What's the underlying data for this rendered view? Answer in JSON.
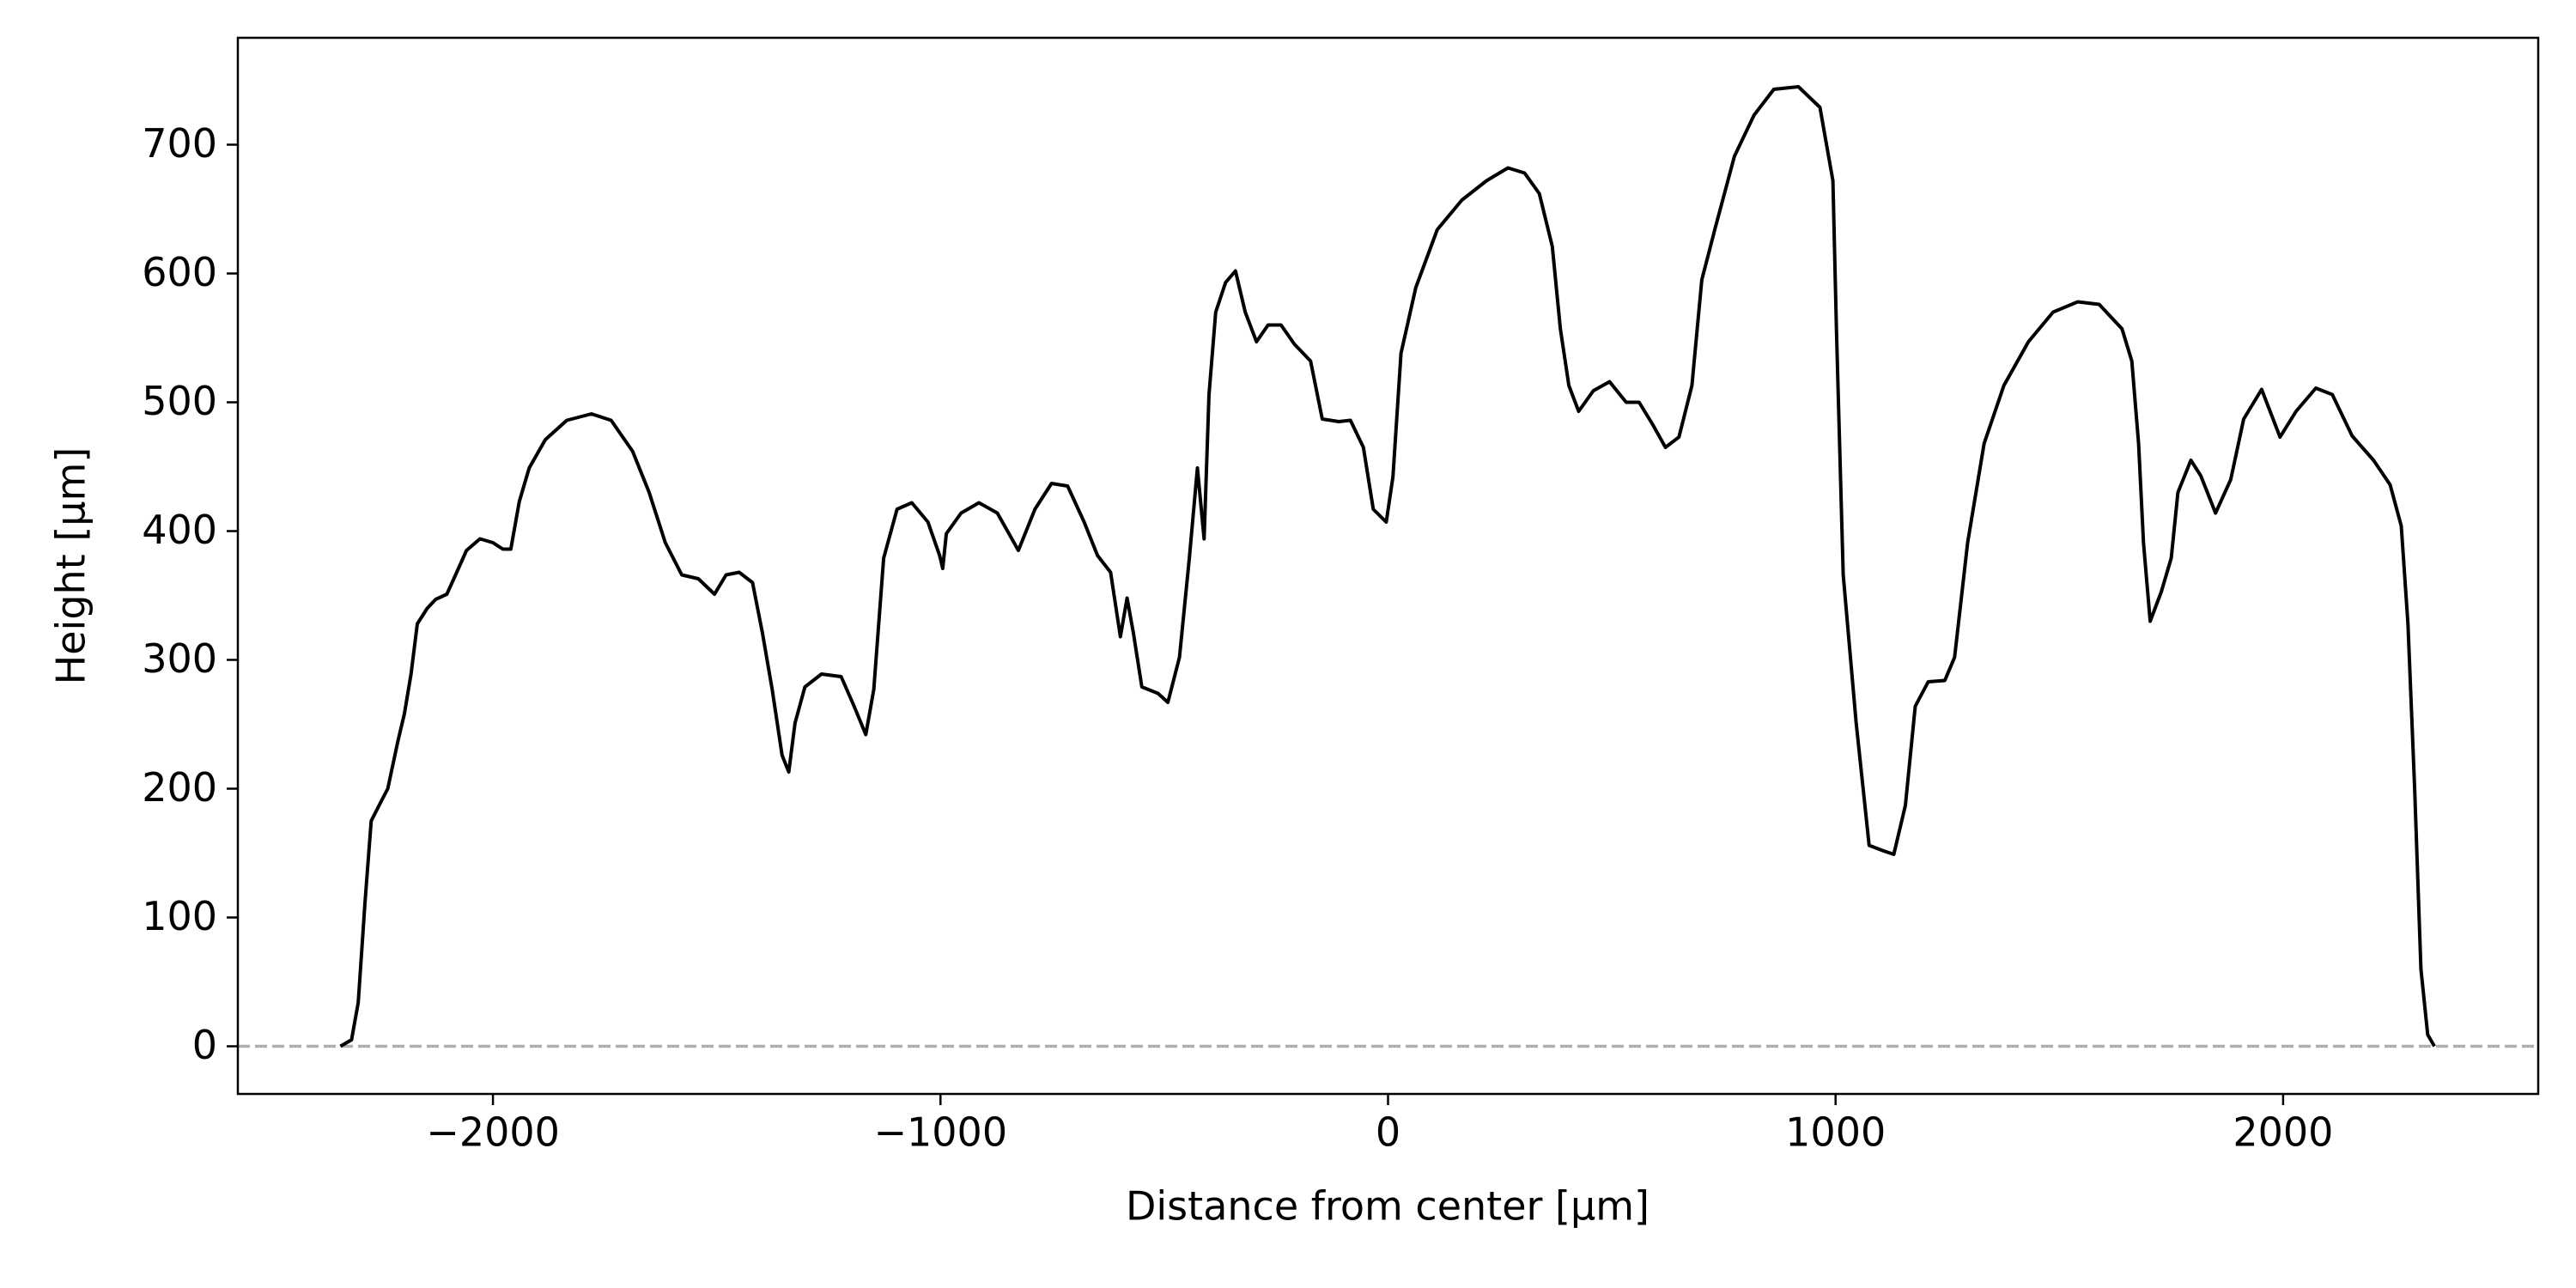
{
  "chart_data": {
    "type": "line",
    "xlabel": "Distance from center [μm]",
    "ylabel": "Height [μm]",
    "xlim": [
      -2570,
      2570
    ],
    "ylim": [
      -37,
      783
    ],
    "xticks": [
      {
        "value": -2000,
        "label": "−2000"
      },
      {
        "value": -1000,
        "label": "−1000"
      },
      0,
      1000,
      2000
    ],
    "yticks": [
      0,
      100,
      200,
      300,
      400,
      500,
      600,
      700
    ],
    "reference_line": {
      "y": 0,
      "color": "#b0b0b0",
      "style": "dashed"
    },
    "series": [
      {
        "color": "#000000",
        "x": [
          -2341,
          -2316,
          -2301,
          -2286,
          -2272,
          -2250,
          -2235,
          -2213,
          -2198,
          -2183,
          -2169,
          -2147,
          -2128,
          -2103,
          -2081,
          -2059,
          -2029,
          -2000,
          -1978,
          -1960,
          -1941,
          -1919,
          -1883,
          -1835,
          -1780,
          -1736,
          -1688,
          -1651,
          -1615,
          -1578,
          -1541,
          -1505,
          -1479,
          -1450,
          -1420,
          -1398,
          -1376,
          -1354,
          -1339,
          -1325,
          -1303,
          -1266,
          -1222,
          -1193,
          -1167,
          -1149,
          -1127,
          -1097,
          -1064,
          -1028,
          -1002,
          -995,
          -987,
          -954,
          -914,
          -873,
          -826,
          -789,
          -752,
          -716,
          -679,
          -649,
          -620,
          -598,
          -583,
          -569,
          -550,
          -514,
          -492,
          -466,
          -444,
          -426,
          -411,
          -400,
          -385,
          -363,
          -341,
          -319,
          -294,
          -268,
          -239,
          -209,
          -173,
          -147,
          -110,
          -84,
          -55,
          -33,
          -4,
          11,
          29,
          62,
          110,
          165,
          220,
          268,
          305,
          338,
          367,
          385,
          404,
          426,
          459,
          495,
          532,
          561,
          591,
          620,
          650,
          679,
          701,
          730,
          774,
          818,
          862,
          917,
          965,
          994,
          1002,
          1017,
          1046,
          1075,
          1105,
          1130,
          1156,
          1178,
          1207,
          1244,
          1266,
          1295,
          1332,
          1376,
          1431,
          1486,
          1541,
          1589,
          1640,
          1662,
          1677,
          1688,
          1703,
          1728,
          1750,
          1765,
          1794,
          1816,
          1849,
          1883,
          1912,
          1952,
          1993,
          2029,
          2073,
          2110,
          2154,
          2202,
          2239,
          2264,
          2279,
          2294,
          2308,
          2323,
          2338
        ],
        "values": [
          0,
          5,
          34,
          111,
          175,
          190,
          200,
          236,
          258,
          289,
          328,
          340,
          347,
          351,
          368,
          385,
          394,
          391,
          386,
          386,
          423,
          449,
          471,
          486,
          491,
          486,
          462,
          430,
          391,
          366,
          363,
          351,
          366,
          368,
          360,
          321,
          277,
          226,
          213,
          251,
          279,
          289,
          287,
          264,
          242,
          277,
          379,
          417,
          422,
          407,
          381,
          371,
          398,
          414,
          422,
          414,
          385,
          417,
          437,
          435,
          407,
          381,
          368,
          318,
          348,
          321,
          279,
          274,
          267,
          302,
          379,
          449,
          394,
          506,
          570,
          593,
          602,
          570,
          547,
          560,
          560,
          545,
          532,
          487,
          485,
          486,
          465,
          417,
          407,
          442,
          538,
          589,
          634,
          657,
          672,
          682,
          678,
          662,
          621,
          557,
          513,
          493,
          509,
          516,
          500,
          500,
          483,
          465,
          473,
          513,
          595,
          634,
          691,
          723,
          743,
          745,
          729,
          672,
          557,
          366,
          251,
          156,
          152,
          149,
          187,
          264,
          283,
          284,
          302,
          391,
          468,
          513,
          547,
          570,
          578,
          576,
          557,
          532,
          468,
          391,
          330,
          353,
          379,
          430,
          455,
          443,
          414,
          440,
          487,
          510,
          473,
          493,
          511,
          506,
          474,
          455,
          436,
          404,
          328,
          200,
          60,
          9,
          0
        ]
      }
    ]
  }
}
